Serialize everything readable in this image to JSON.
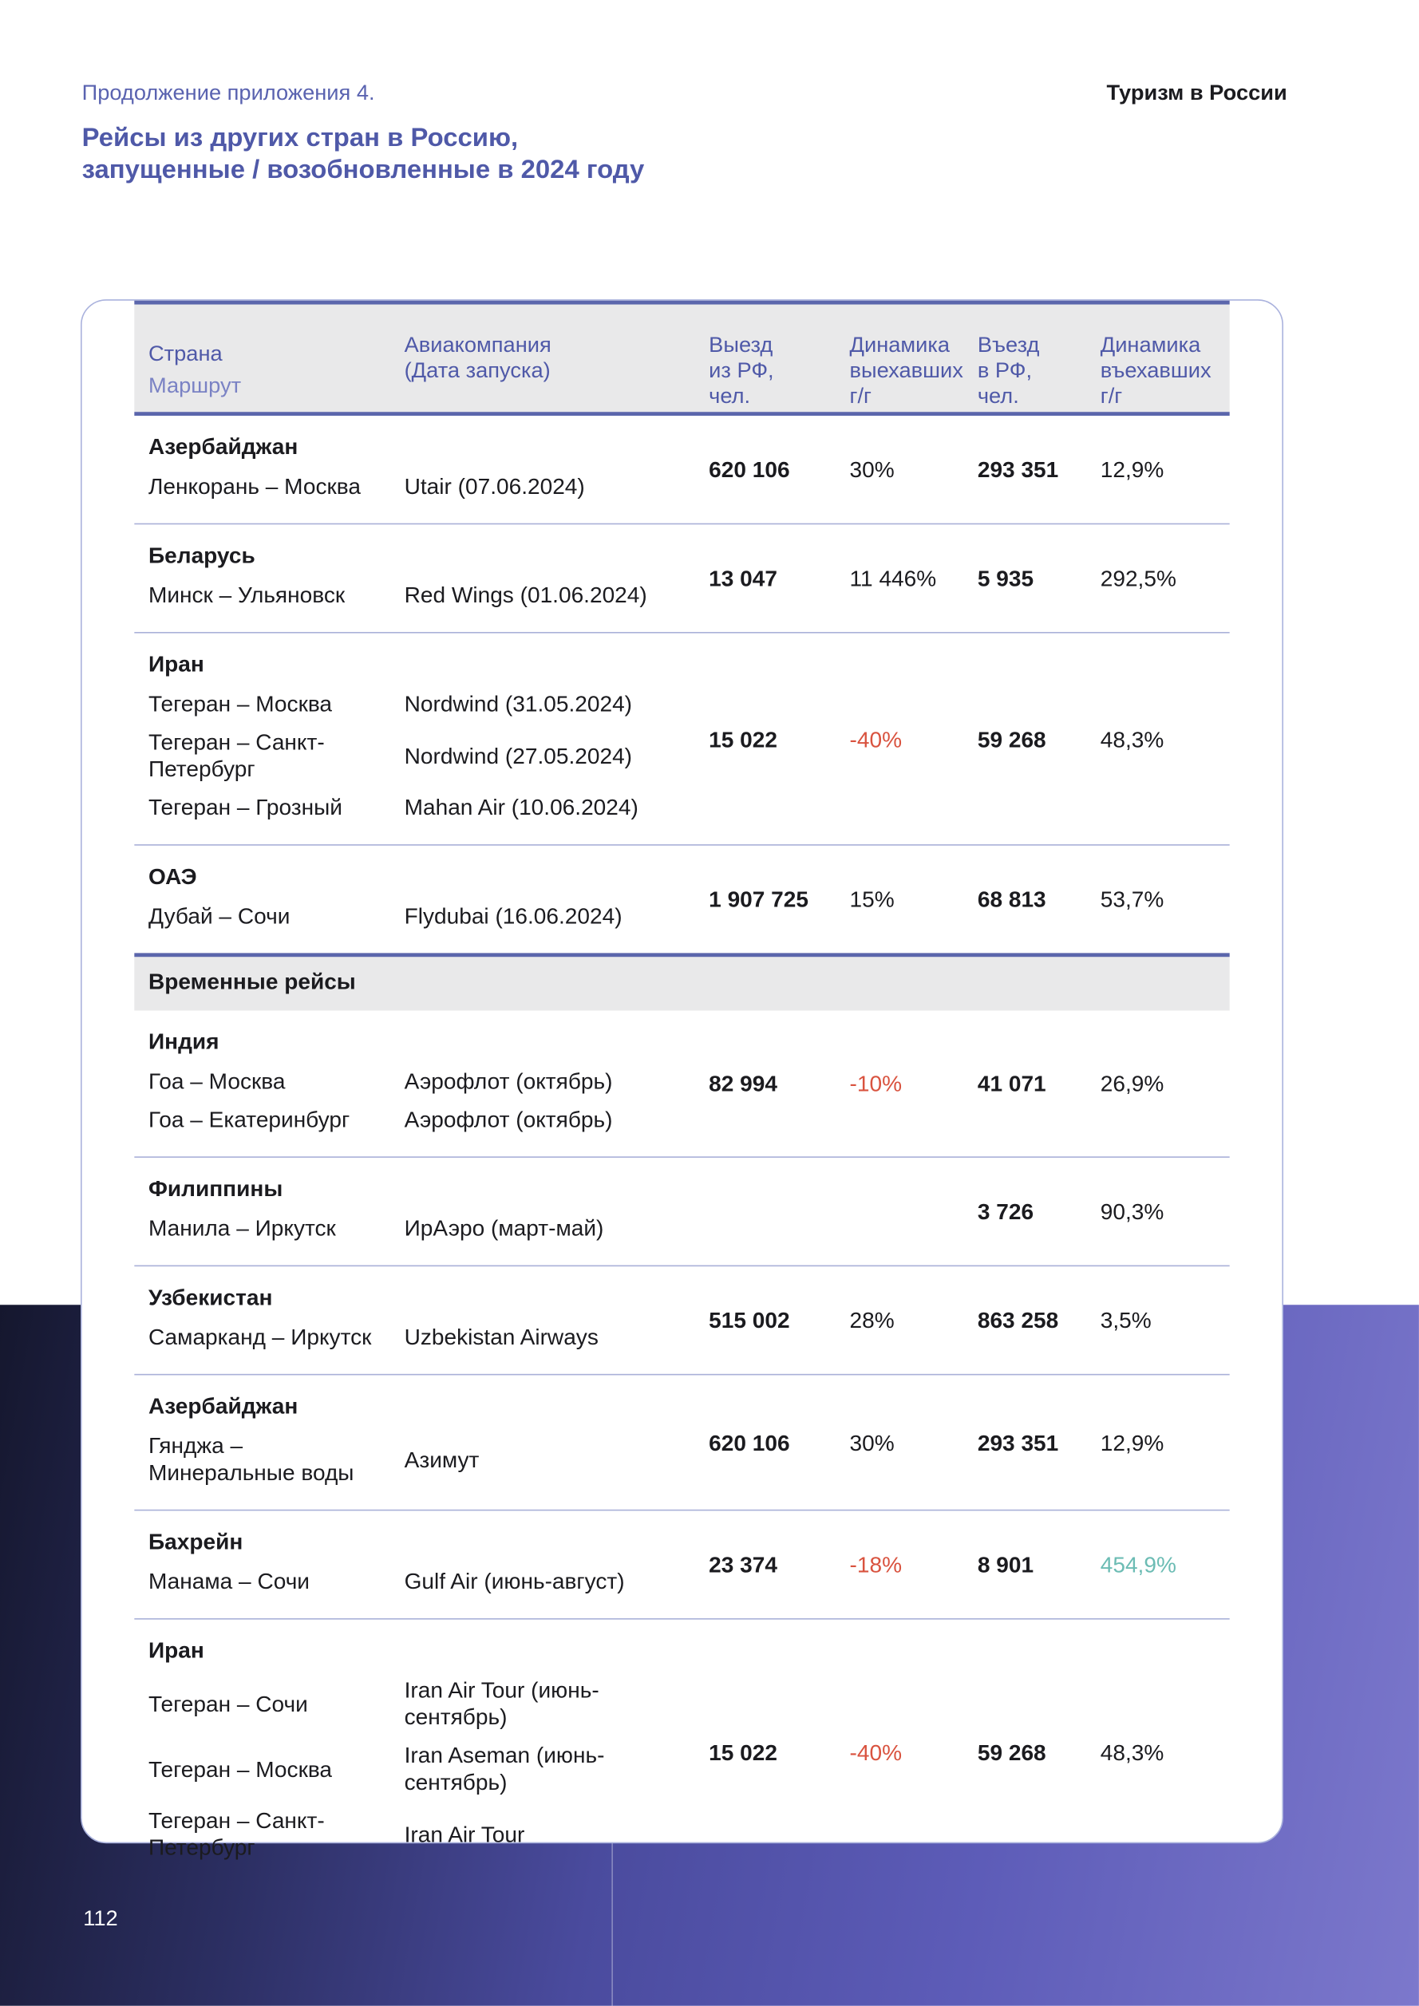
{
  "header": {
    "subtitle": "Продолжение приложения 4.",
    "title_lines": [
      "Рейсы из других стран в Россию,",
      "запущенные / возобновленные в 2024 году"
    ],
    "section": "Туризм в России"
  },
  "table": {
    "columns": [
      {
        "title": "Страна",
        "subtitle": "Маршрут"
      },
      "Авиакомпания\n(Дата запуска)",
      "Выезд\nиз РФ,\nчел.",
      "Динамика\nвыехавших\nг/г",
      "Въезд\nв РФ,\nчел.",
      "Динамика\nвъехавших\nг/г"
    ],
    "sections": [
      {
        "rows": [
          {
            "country": "Азербайджан",
            "routes": [
              {
                "route": "Ленкорань – Москва",
                "airline": "Utair (07.06.2024)"
              }
            ],
            "outbound": "620 106",
            "outbound_change": "30%",
            "inbound": "293 351",
            "inbound_change": "12,9%"
          },
          {
            "country": "Беларусь",
            "routes": [
              {
                "route": "Минск – Ульяновск",
                "airline": "Red Wings (01.06.2024)"
              }
            ],
            "outbound": "13 047",
            "outbound_change": "11 446%",
            "inbound": "5 935",
            "inbound_change": "292,5%"
          },
          {
            "country": "Иран",
            "routes": [
              {
                "route": "Тегеран – Москва",
                "airline": "Nordwind (31.05.2024)"
              },
              {
                "route": "Тегеран – Санкт-Петербург",
                "airline": "Nordwind (27.05.2024)"
              },
              {
                "route": "Тегеран – Грозный",
                "airline": "Mahan Air (10.06.2024)"
              }
            ],
            "outbound": "15 022",
            "outbound_change": "-40%",
            "outbound_change_color": "#d9533f",
            "inbound": "59 268",
            "inbound_change": "48,3%"
          },
          {
            "country": "ОАЭ",
            "routes": [
              {
                "route": "Дубай – Сочи",
                "airline": "Flydubai (16.06.2024)"
              }
            ],
            "outbound": "1 907 725",
            "outbound_change": "15%",
            "inbound": "68 813",
            "inbound_change": "53,7%"
          }
        ]
      },
      {
        "title": "Временные рейсы",
        "rows": [
          {
            "country": "Индия",
            "routes": [
              {
                "route": "Гоа – Москва",
                "airline": "Аэрофлот (октябрь)"
              },
              {
                "route": "Гоа – Екатеринбург",
                "airline": "Аэрофлот (октябрь)"
              }
            ],
            "outbound": "82 994",
            "outbound_change": "-10%",
            "outbound_change_color": "#d9533f",
            "inbound": "41 071",
            "inbound_change": "26,9%"
          },
          {
            "country": "Филиппины",
            "routes": [
              {
                "route": "Манила – Иркутск",
                "airline": "ИрАэро (март-май)"
              }
            ],
            "inbound": "3 726",
            "inbound_change": "90,3%"
          },
          {
            "country": "Узбекистан",
            "routes": [
              {
                "route": "Самарканд – Иркутск",
                "airline": "Uzbekistan Airways"
              }
            ],
            "outbound": "515 002",
            "outbound_change": "28%",
            "inbound": "863 258",
            "inbound_change": "3,5%"
          },
          {
            "country": "Азербайджан",
            "routes": [
              {
                "route": "Гянджа – Минеральные воды",
                "airline": "Азимут"
              }
            ],
            "outbound": "620 106",
            "outbound_change": "30%",
            "inbound": "293 351",
            "inbound_change": "12,9%"
          },
          {
            "country": "Бахрейн",
            "routes": [
              {
                "route": "Манама – Сочи",
                "airline": "Gulf Air (июнь-август)"
              }
            ],
            "outbound": "23 374",
            "outbound_change": "-18%",
            "outbound_change_color": "#d9533f",
            "inbound": "8 901",
            "inbound_change": "454,9%",
            "inbound_change_color": "#6cbcb4"
          },
          {
            "country": "Иран",
            "routes": [
              {
                "route": "Тегеран – Сочи",
                "airline": "Iran Air Tour (июнь-сентябрь)"
              },
              {
                "route": "Тегеран – Москва",
                "airline": "Iran Aseman (июнь-сентябрь)"
              },
              {
                "route": "Тегеран – Санкт-Петербург",
                "airline": "Iran Air Tour"
              }
            ],
            "outbound": "15 022",
            "outbound_change": "-40%",
            "outbound_change_color": "#d9533f",
            "inbound": "59 268",
            "inbound_change": "48,3%"
          }
        ]
      }
    ]
  },
  "page_number": "112"
}
